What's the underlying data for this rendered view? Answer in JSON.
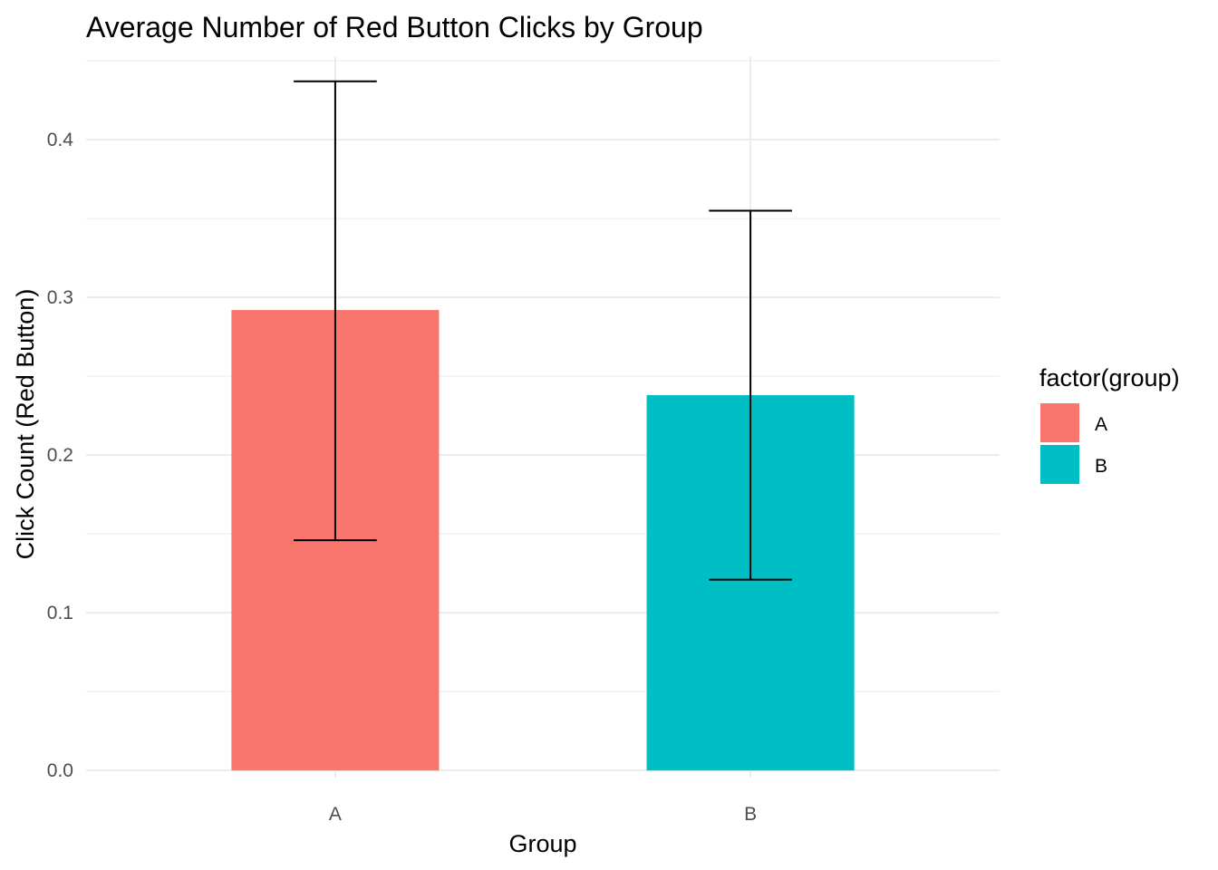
{
  "chart_data": {
    "type": "bar",
    "title": "Average Number of Red Button Clicks by Group",
    "xlabel": "Group",
    "ylabel": "Click Count (Red Button)",
    "categories": [
      "A",
      "B"
    ],
    "values": [
      0.292,
      0.238
    ],
    "error_bars": [
      {
        "lower": 0.146,
        "upper": 0.437
      },
      {
        "lower": 0.121,
        "upper": 0.355
      }
    ],
    "colors": [
      "#F8766D",
      "#00BFC4"
    ],
    "ylim": [
      -0.0045,
      0.4524
    ],
    "yticks": [
      0.0,
      0.1,
      0.2,
      0.3,
      0.4
    ],
    "ytick_labels": [
      "0.0",
      "0.1",
      "0.2",
      "0.3",
      "0.4"
    ],
    "grid": true,
    "legend": {
      "title": "factor(group)",
      "placement": "right",
      "entries": [
        "A",
        "B"
      ]
    }
  }
}
